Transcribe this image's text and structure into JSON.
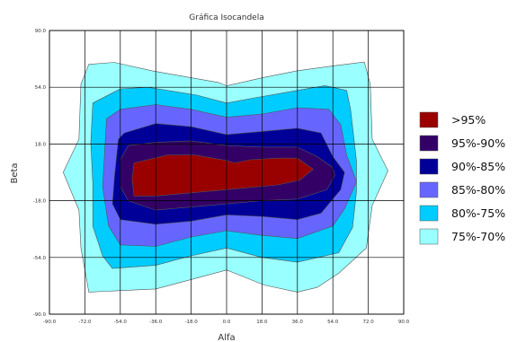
{
  "chart_data": {
    "type": "contour",
    "title": "Gráfica Isocandela",
    "xlabel": "Alfa",
    "ylabel": "Beta",
    "xlim": [
      -90,
      90
    ],
    "ylim": [
      -90,
      90
    ],
    "x_ticks": [
      "-90.0",
      "-72.0",
      "-54.0",
      "-36.0",
      "-18.0",
      "0.0",
      "18.0",
      "36.0",
      "54.0",
      "72.0",
      "90.0"
    ],
    "y_ticks": [
      "90.0",
      "54.0",
      "18.0",
      "-18.0",
      "-54.0",
      "-90.0"
    ],
    "grid": true,
    "legend_position": "right",
    "series": [
      {
        "name": "75%-70%",
        "color": "#99FFFF",
        "polygon": [
          [
            -70,
            68.5
          ],
          [
            -57,
            69.8
          ],
          [
            -38,
            64.5
          ],
          [
            -20,
            60.5
          ],
          [
            -4,
            57
          ],
          [
            0,
            54.9
          ],
          [
            18,
            60
          ],
          [
            36,
            64.5
          ],
          [
            57,
            68
          ],
          [
            70,
            70
          ],
          [
            73,
            56
          ],
          [
            74,
            21
          ],
          [
            82,
            1
          ],
          [
            74,
            -21
          ],
          [
            71,
            -48
          ],
          [
            57,
            -64
          ],
          [
            46,
            -73
          ],
          [
            36,
            -76
          ],
          [
            19,
            -71.5
          ],
          [
            0,
            -62
          ],
          [
            -18,
            -68
          ],
          [
            -36,
            -74
          ],
          [
            -61,
            -75.5
          ],
          [
            -70,
            -76
          ],
          [
            -74,
            -48
          ],
          [
            -75,
            -24
          ],
          [
            -83,
            0
          ],
          [
            -75,
            21
          ],
          [
            -74,
            56
          ]
        ]
      },
      {
        "name": "80%-75%",
        "color": "#00CCFF",
        "polygon": [
          [
            -68,
            44
          ],
          [
            -54,
            53
          ],
          [
            -40,
            54
          ],
          [
            -15,
            49
          ],
          [
            0,
            44
          ],
          [
            13,
            47
          ],
          [
            36,
            52
          ],
          [
            50,
            55
          ],
          [
            61,
            52
          ],
          [
            63,
            40
          ],
          [
            66,
            7
          ],
          [
            66,
            -12
          ],
          [
            64,
            -35
          ],
          [
            57,
            -51
          ],
          [
            36,
            -57
          ],
          [
            18,
            -54
          ],
          [
            0,
            -48
          ],
          [
            -18,
            -53
          ],
          [
            -36,
            -59
          ],
          [
            -58,
            -61
          ],
          [
            -63,
            -53
          ],
          [
            -68,
            -34
          ],
          [
            -68,
            -7
          ],
          [
            -69,
            19
          ]
        ]
      },
      {
        "name": "85%-80%",
        "color": "#6666FF",
        "polygon": [
          [
            -61,
            34
          ],
          [
            -54,
            40
          ],
          [
            -36,
            43
          ],
          [
            -18,
            40
          ],
          [
            0,
            35
          ],
          [
            18,
            37
          ],
          [
            36,
            41
          ],
          [
            52,
            40
          ],
          [
            58,
            30
          ],
          [
            61,
            11
          ],
          [
            66,
            -6
          ],
          [
            60,
            -23
          ],
          [
            54,
            -34
          ],
          [
            36,
            -42
          ],
          [
            18,
            -40
          ],
          [
            0,
            -37
          ],
          [
            -18,
            -41
          ],
          [
            -36,
            -47
          ],
          [
            -54,
            -46
          ],
          [
            -60,
            -34
          ],
          [
            -63,
            -9
          ],
          [
            -62,
            12
          ]
        ]
      },
      {
        "name": "90%-85%",
        "color": "#000099",
        "polygon": [
          [
            -55,
            21
          ],
          [
            -52,
            25
          ],
          [
            -36,
            31
          ],
          [
            -18,
            29
          ],
          [
            0,
            24
          ],
          [
            18,
            26
          ],
          [
            36,
            28
          ],
          [
            48,
            25
          ],
          [
            54,
            10
          ],
          [
            60,
            0
          ],
          [
            58,
            -11
          ],
          [
            48,
            -26
          ],
          [
            36,
            -30
          ],
          [
            18,
            -28
          ],
          [
            0,
            -27
          ],
          [
            -18,
            -31
          ],
          [
            -36,
            -33
          ],
          [
            -54,
            -30
          ],
          [
            -58,
            -20
          ],
          [
            -57,
            -3
          ]
        ]
      },
      {
        "name": "95%-90%",
        "color": "#330066",
        "polygon": [
          [
            -54,
            8
          ],
          [
            -50,
            17
          ],
          [
            -36,
            19
          ],
          [
            -18,
            20
          ],
          [
            0,
            17
          ],
          [
            18,
            16
          ],
          [
            36,
            16
          ],
          [
            46,
            10
          ],
          [
            54,
            3
          ],
          [
            55,
            -2
          ],
          [
            51,
            -11
          ],
          [
            36,
            -17
          ],
          [
            18,
            -18
          ],
          [
            0,
            -20
          ],
          [
            -18,
            -22
          ],
          [
            -36,
            -24
          ],
          [
            -50,
            -18
          ],
          [
            -54,
            -9
          ]
        ]
      },
      {
        "name": ">95%",
        "color": "#990000",
        "polygon": [
          [
            -47,
            6
          ],
          [
            -30,
            11
          ],
          [
            -16,
            11
          ],
          [
            0,
            7.5
          ],
          [
            4,
            6
          ],
          [
            12,
            8
          ],
          [
            26,
            9
          ],
          [
            36,
            9
          ],
          [
            44,
            2
          ],
          [
            37,
            -5
          ],
          [
            26,
            -8
          ],
          [
            0,
            -11
          ],
          [
            -18,
            -13
          ],
          [
            -36,
            -15
          ],
          [
            -47,
            -15
          ],
          [
            -48,
            -4
          ]
        ]
      }
    ]
  }
}
